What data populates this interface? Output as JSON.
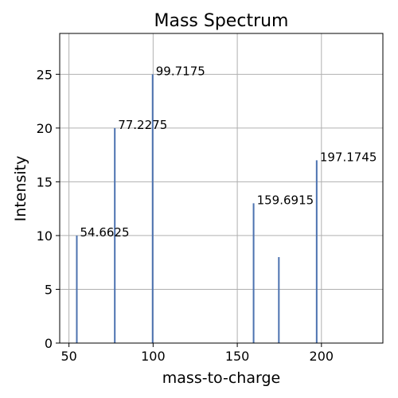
{
  "chart_data": {
    "type": "bar",
    "title": "Mass Spectrum",
    "xlabel": "mass-to-charge",
    "ylabel": "Intensity",
    "xlim": [
      44.5,
      236.5
    ],
    "ylim": [
      0,
      28.8
    ],
    "xticks": [
      50,
      100,
      150,
      200
    ],
    "yticks": [
      0,
      5,
      10,
      15,
      20,
      25
    ],
    "grid": true,
    "color": "#4c72b0",
    "peaks": [
      {
        "mz": 54.6625,
        "intensity": 10,
        "label": "54.6625"
      },
      {
        "mz": 77.2275,
        "intensity": 20,
        "label": "77.2275"
      },
      {
        "mz": 99.7175,
        "intensity": 25,
        "label": "99.7175"
      },
      {
        "mz": 159.6915,
        "intensity": 13,
        "label": "159.6915"
      },
      {
        "mz": 174.7,
        "intensity": 8,
        "label": ""
      },
      {
        "mz": 197.1745,
        "intensity": 17,
        "label": "197.1745"
      }
    ]
  }
}
